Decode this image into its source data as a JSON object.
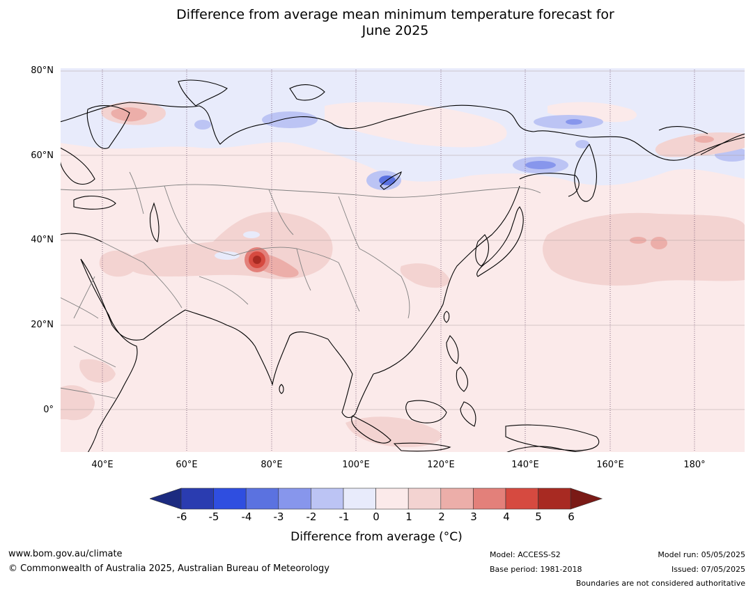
{
  "title": {
    "line1": "Difference from average mean minimum temperature forecast for",
    "line2": "June 2025"
  },
  "map": {
    "lat_labels": [
      "80°N",
      "60°N",
      "40°N",
      "20°N",
      "0°"
    ],
    "lon_labels": [
      "40°E",
      "60°E",
      "80°E",
      "100°E",
      "120°E",
      "140°E",
      "160°E",
      "180°"
    ],
    "background_color": "#fbeaea"
  },
  "colorbar": {
    "ticks": [
      "-6",
      "-5",
      "-4",
      "-3",
      "-2",
      "-1",
      "0",
      "1",
      "2",
      "3",
      "4",
      "5",
      "6"
    ],
    "label": "Difference from average (°C)",
    "colors": [
      "#1c2b80",
      "#2a3cb0",
      "#2f4ee0",
      "#5b72e0",
      "#8796ec",
      "#bcc4f4",
      "#e8ebfb",
      "#fbeaea",
      "#f3d3d1",
      "#ecaea9",
      "#e3807a",
      "#d64a40",
      "#a82a22",
      "#7a1a16"
    ]
  },
  "footer": {
    "website": "www.bom.gov.au/climate",
    "copyright": "© Commonwealth of Australia 2025, Australian Bureau of Meteorology",
    "model": "Model: ACCESS-S2",
    "base_period": "Base period: 1981-2018",
    "model_run": "Model run: 05/05/2025",
    "issued": "Issued: 07/05/2025",
    "disclaimer": "Boundaries are not considered authoritative"
  }
}
